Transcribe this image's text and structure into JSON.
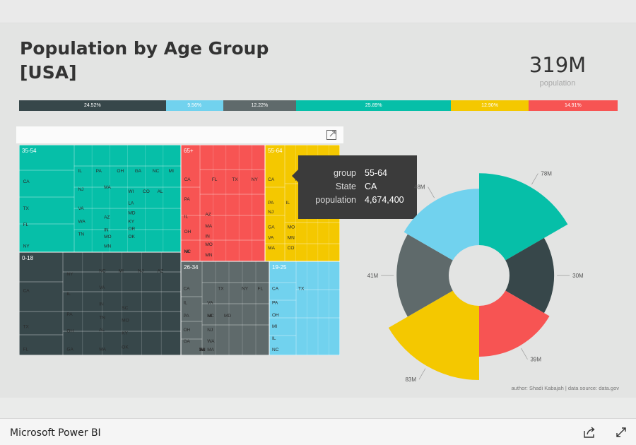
{
  "report": {
    "title": "Population by Age Group [USA]",
    "kpi": {
      "value": "319M",
      "label": "population"
    },
    "attribution": "author: Shadi Kabajah | data source: data.gov"
  },
  "share_bar": [
    {
      "label": "24.52%",
      "pct": 24.52,
      "color": "#37474a"
    },
    {
      "label": "9.56%",
      "pct": 9.56,
      "color": "#71d2ee"
    },
    {
      "label": "12.22%",
      "pct": 12.22,
      "color": "#5f6a6b"
    },
    {
      "label": "25.89%",
      "pct": 25.89,
      "color": "#06bfa8"
    },
    {
      "label": "12.90%",
      "pct": 12.9,
      "color": "#f4c800"
    },
    {
      "label": "14.91%",
      "pct": 14.91,
      "color": "#f75453"
    }
  ],
  "treemap": {
    "groups": [
      {
        "name": "35-54",
        "color": "#06bfa8",
        "states": [
          "CA",
          "TX",
          "FL",
          "NY",
          "IL",
          "PA",
          "OH",
          "GA",
          "NC",
          "MI",
          "NJ",
          "WI",
          "CO",
          "AL",
          "VA",
          "MA",
          "WA",
          "AZ",
          "IN",
          "TN",
          "LA",
          "MD",
          "KY",
          "OR",
          "MO",
          "OK",
          "MN"
        ]
      },
      {
        "name": "0-18",
        "color": "#37474a",
        "states": [
          "CA",
          "TX",
          "FL",
          "NY",
          "IL",
          "PA",
          "OH",
          "GA",
          "NC",
          "MI",
          "NJ",
          "VA",
          "AZ",
          "IN",
          "TN",
          "AL",
          "SC",
          "MO",
          "KY",
          "MA",
          "OK"
        ]
      },
      {
        "name": "65+",
        "color": "#f75453",
        "states": [
          "CA",
          "FL",
          "TX",
          "NY",
          "PA",
          "IL",
          "OH",
          "MI",
          "NC",
          "AZ",
          "MA",
          "IN",
          "MO",
          "MN"
        ]
      },
      {
        "name": "55-64",
        "color": "#f4c800",
        "states": [
          "CA",
          "TX",
          "PA",
          "IL",
          "NJ",
          "GA",
          "VA",
          "MA",
          "MO",
          "MN",
          "CO"
        ]
      },
      {
        "name": "26-34",
        "color": "#5f6a6b",
        "states": [
          "CA",
          "TX",
          "NY",
          "FL",
          "IL",
          "OH",
          "PA",
          "GA",
          "NC",
          "VA",
          "NJ",
          "MI",
          "MD",
          "WA",
          "MA",
          "IN",
          "TN",
          "WI",
          "AL"
        ]
      },
      {
        "name": "19-25",
        "color": "#71d2ee",
        "states": [
          "CA",
          "TX",
          "PA",
          "OH",
          "MI",
          "IL",
          "NC"
        ]
      }
    ]
  },
  "tooltip": {
    "rows": [
      {
        "key": "group",
        "value": "55-64"
      },
      {
        "key": "State",
        "value": "CA"
      },
      {
        "key": "population",
        "value": "4,674,400"
      }
    ]
  },
  "chart_data": {
    "type": "pie",
    "variant": "radial-donut",
    "categories": [
      "35-54",
      "0-18",
      "65+",
      "55-64",
      "26-34",
      "19-25"
    ],
    "values": [
      78,
      30,
      39,
      83,
      41,
      48
    ],
    "data_labels": [
      "78M",
      "30M",
      "39M",
      "83M",
      "41M",
      "48M"
    ],
    "colors": [
      "#06bfa8",
      "#37474a",
      "#f75453",
      "#f4c800",
      "#5f6a6b",
      "#71d2ee"
    ]
  },
  "footer": {
    "brand": "Microsoft Power BI",
    "share_icon": "share-icon",
    "expand_icon": "expand-icon"
  }
}
